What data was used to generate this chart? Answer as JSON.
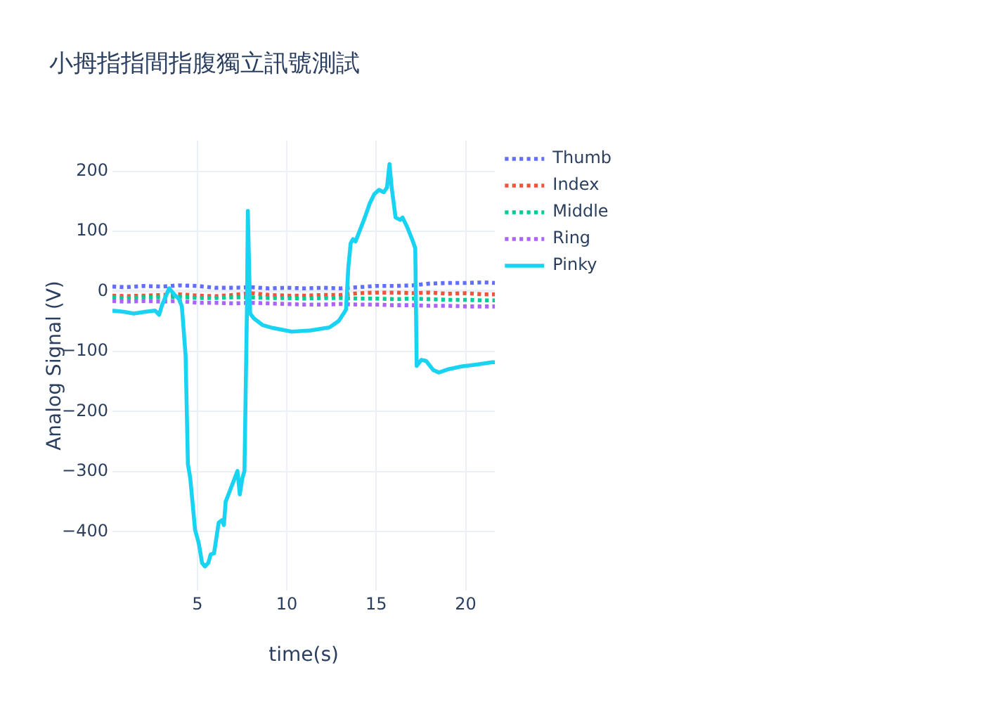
{
  "chart_data": {
    "type": "line",
    "title": "小拇指指間指腹獨立訊號測試",
    "xlabel": "time(s)",
    "ylabel": "Analog Signal (V)",
    "series": [
      {
        "name": "Thumb",
        "color": "#636efa",
        "line_style": "dotted",
        "x": [
          0.25,
          1,
          2,
          3,
          4,
          5,
          6,
          7,
          8,
          9,
          10,
          11,
          12,
          13,
          14,
          15,
          16,
          17,
          18,
          19,
          20,
          21,
          21.64
        ],
        "values": [
          8,
          7,
          9,
          8,
          10,
          9,
          6,
          6,
          7,
          5,
          6,
          5,
          6,
          5,
          7,
          9,
          9,
          10,
          13,
          14,
          14,
          15,
          14
        ]
      },
      {
        "name": "Index",
        "color": "#ef553b",
        "line_style": "dotted",
        "x": [
          0.25,
          1,
          2,
          3,
          4,
          5,
          6,
          7,
          8,
          9,
          10,
          11,
          12,
          13,
          14,
          15,
          16,
          17,
          18,
          19,
          20,
          21,
          21.64
        ],
        "values": [
          -7,
          -8,
          -7,
          -6,
          -5,
          -7,
          -8,
          -6,
          -3,
          -6,
          -7,
          -7,
          -6,
          -6,
          -3,
          -2,
          -2,
          -3,
          -2,
          -4,
          -3,
          -5,
          -5
        ]
      },
      {
        "name": "Middle",
        "color": "#00cc96",
        "line_style": "dotted",
        "x": [
          0.25,
          1,
          2,
          3,
          4,
          5,
          6,
          7,
          8,
          9,
          10,
          11,
          12,
          13,
          14,
          15,
          16,
          17,
          18,
          19,
          20,
          21,
          21.64
        ],
        "values": [
          -10,
          -11,
          -10,
          -10,
          -9,
          -11,
          -11,
          -10,
          -10,
          -11,
          -11,
          -12,
          -11,
          -11,
          -12,
          -12,
          -13,
          -12,
          -13,
          -14,
          -14,
          -15,
          -15
        ]
      },
      {
        "name": "Ring",
        "color": "#ab63fa",
        "line_style": "dotted",
        "x": [
          0.25,
          1,
          2,
          3,
          4,
          5,
          6,
          7,
          8,
          9,
          10,
          11,
          12,
          13,
          14,
          15,
          16,
          17,
          18,
          19,
          20,
          21,
          21.64
        ],
        "values": [
          -16,
          -17,
          -16,
          -17,
          -16,
          -19,
          -19,
          -20,
          -19,
          -20,
          -21,
          -22,
          -22,
          -21,
          -22,
          -22,
          -23,
          -23,
          -24,
          -24,
          -25,
          -25,
          -25
        ]
      },
      {
        "name": "Pinky",
        "color": "#19d3f3",
        "line_style": "solid",
        "x": [
          0.25,
          0.89,
          1.44,
          2.07,
          2.63,
          2.86,
          3.02,
          3.42,
          3.73,
          3.97,
          4.13,
          4.34,
          4.47,
          4.6,
          4.87,
          5.08,
          5.26,
          5.42,
          5.61,
          5.74,
          5.93,
          6.19,
          6.37,
          6.48,
          6.58,
          6.84,
          7.24,
          7.37,
          7.51,
          7.63,
          7.77,
          7.82,
          7.95,
          8.16,
          8.64,
          9.22,
          10.28,
          11.33,
          12.38,
          12.91,
          13.17,
          13.31,
          13.44,
          13.57,
          13.7,
          13.84,
          14.1,
          14.36,
          14.63,
          14.89,
          15.15,
          15.42,
          15.6,
          15.74,
          15.86,
          16.08,
          16.34,
          16.47,
          16.73,
          17.0,
          17.18,
          17.26,
          17.52,
          17.79,
          18.19,
          18.5,
          18.98,
          19.77,
          20.56,
          21.48,
          21.64
        ],
        "values": [
          -32,
          -34,
          -37,
          -34,
          -32,
          -39,
          -23,
          5,
          -6,
          -13,
          -25,
          -107,
          -288,
          -311,
          -397,
          -420,
          -452,
          -458,
          -452,
          -438,
          -436,
          -385,
          -381,
          -389,
          -350,
          -330,
          -299,
          -338,
          -311,
          -299,
          -30,
          134,
          -37,
          -45,
          -56,
          -61,
          -67,
          -65,
          -60,
          -49,
          -37,
          -30,
          41,
          80,
          87,
          83,
          103,
          123,
          146,
          162,
          169,
          165,
          173,
          212,
          173,
          123,
          119,
          123,
          107,
          87,
          72,
          -124,
          -114,
          -116,
          -131,
          -135,
          -130,
          -125,
          -122,
          -118,
          -118
        ]
      }
    ],
    "xlim": [
      0.25,
      21.64
    ],
    "xticks": [
      5,
      10,
      15,
      20
    ],
    "ylim": [
      -498,
      251
    ],
    "yticks": [
      {
        "value": -400,
        "label": "−400"
      },
      {
        "value": -300,
        "label": "−300"
      },
      {
        "value": -200,
        "label": "−200"
      },
      {
        "value": -100,
        "label": "−100"
      },
      0,
      100,
      200
    ],
    "grid": true,
    "legend": "top right",
    "marker": "none"
  }
}
